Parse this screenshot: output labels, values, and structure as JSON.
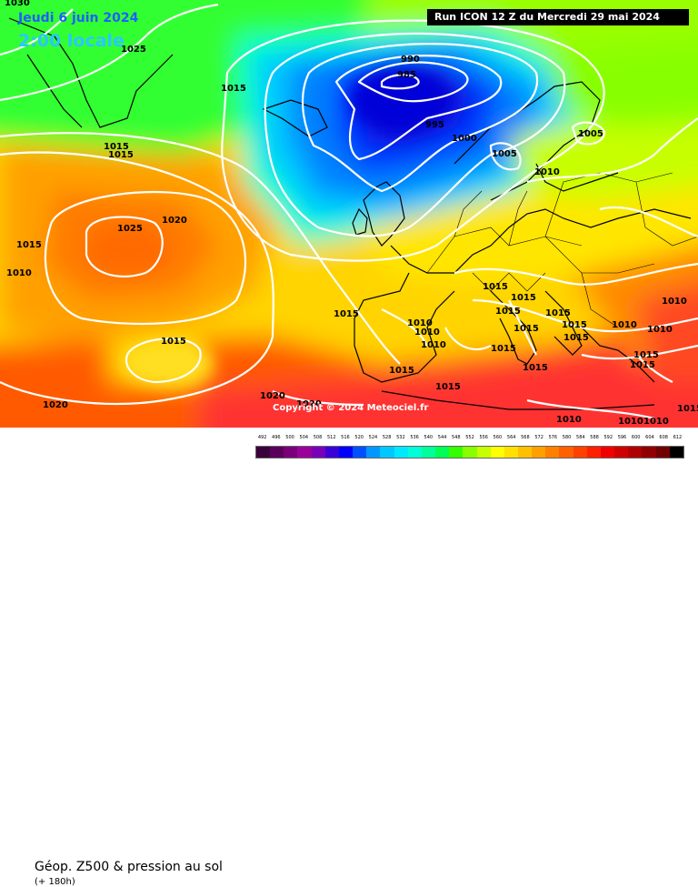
{
  "header": {
    "date": "Jeudi 6 juin 2024",
    "time": "2:00 locale",
    "run": "Run ICON 12 Z du Mercredi 29 mai 2024"
  },
  "copyright": "Copyright © 2024 Meteociel.fr",
  "footer": {
    "title": "Géop. Z500 & pression au sol",
    "subtitle": "(+ 180h)"
  },
  "scale": {
    "labels": [
      "492",
      "496",
      "500",
      "504",
      "508",
      "512",
      "516",
      "520",
      "524",
      "528",
      "532",
      "536",
      "540",
      "544",
      "548",
      "552",
      "556",
      "560",
      "564",
      "568",
      "572",
      "576",
      "580",
      "584",
      "588",
      "592",
      "596",
      "600",
      "604",
      "608",
      "612"
    ],
    "colors": [
      "#3a003a",
      "#5a005a",
      "#7a007a",
      "#9a009a",
      "#7800b8",
      "#3a00d8",
      "#0000ff",
      "#0050ff",
      "#0098ff",
      "#00c8ff",
      "#00e8ff",
      "#00ffd8",
      "#00ff9a",
      "#00ff55",
      "#33ff00",
      "#88ff00",
      "#c8ff00",
      "#ffff00",
      "#ffe000",
      "#ffc000",
      "#ffa000",
      "#ff8000",
      "#ff6000",
      "#ff4000",
      "#ff2000",
      "#f00000",
      "#d00000",
      "#b00000",
      "#900000",
      "#700000",
      "#000000"
    ]
  },
  "isobar_labels": [
    {
      "text": "1030"
    },
    {
      "text": "1025"
    },
    {
      "text": "1015"
    },
    {
      "text": "1015"
    },
    {
      "text": "1015"
    },
    {
      "text": "990"
    },
    {
      "text": "985"
    },
    {
      "text": "995"
    },
    {
      "text": "1000"
    },
    {
      "text": "1005"
    },
    {
      "text": "1005"
    },
    {
      "text": "1010"
    },
    {
      "text": "1020"
    },
    {
      "text": "1025"
    },
    {
      "text": "1015"
    },
    {
      "text": "1010"
    },
    {
      "text": "1015"
    },
    {
      "text": "1015"
    },
    {
      "text": "1010"
    },
    {
      "text": "1015"
    },
    {
      "text": "1015"
    },
    {
      "text": "1010"
    },
    {
      "text": "1010"
    },
    {
      "text": "1015"
    },
    {
      "text": "1015"
    },
    {
      "text": "1010"
    },
    {
      "text": "1015"
    },
    {
      "text": "1015"
    },
    {
      "text": "1015"
    },
    {
      "text": "1010"
    },
    {
      "text": "1010"
    },
    {
      "text": "1015"
    },
    {
      "text": "1015"
    },
    {
      "text": "1015"
    },
    {
      "text": "1020"
    },
    {
      "text": "1020"
    },
    {
      "text": "1015"
    },
    {
      "text": "1020"
    },
    {
      "text": "1010"
    },
    {
      "text": "1010"
    },
    {
      "text": "1015"
    },
    {
      "text": "1010"
    },
    {
      "text": "1015"
    },
    {
      "text": "1015"
    }
  ]
}
